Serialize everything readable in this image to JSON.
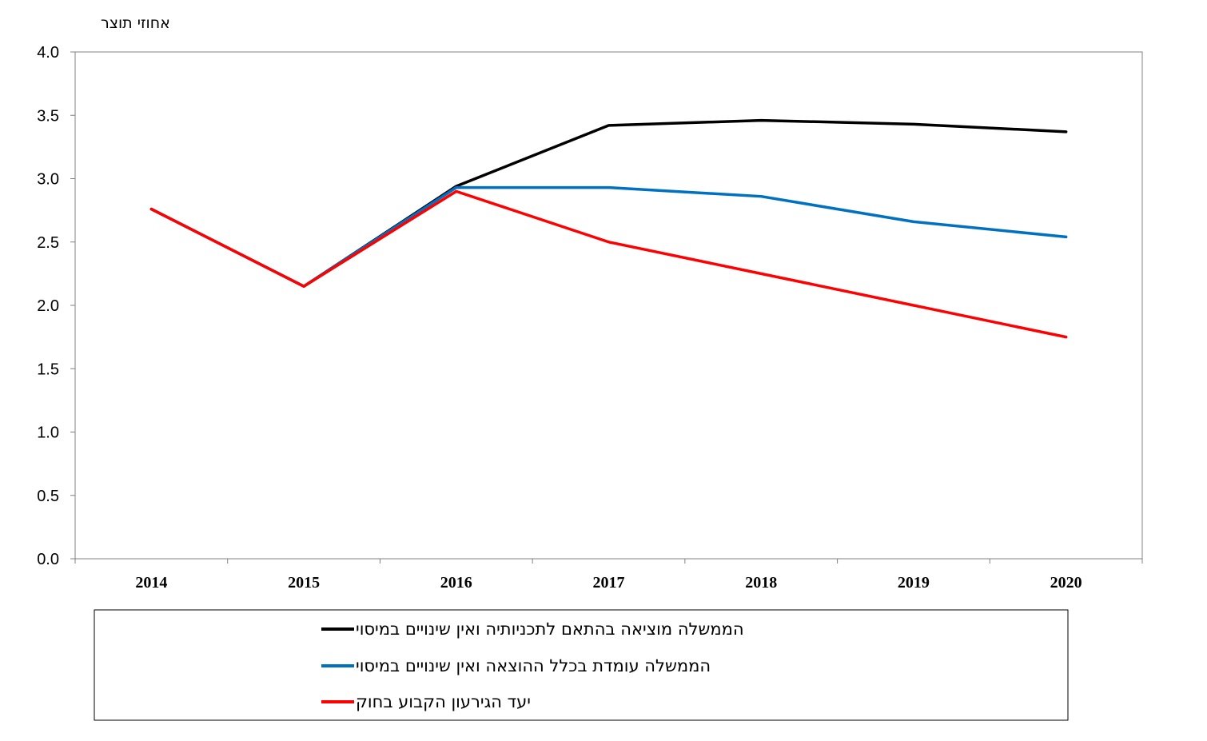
{
  "chart_data": {
    "type": "line",
    "title": "",
    "xlabel": "",
    "ylabel": "אחוזי תוצר",
    "categories": [
      "2014",
      "2015",
      "2016",
      "2017",
      "2018",
      "2019",
      "2020"
    ],
    "ylim": [
      0,
      4
    ],
    "yticks": [
      "0.0",
      "0.5",
      "1.0",
      "1.5",
      "2.0",
      "2.5",
      "3.0",
      "3.5",
      "4.0"
    ],
    "grid": false,
    "legend_position": "bottom",
    "series": [
      {
        "name": "הממשלה מוציאה בהתאם לתכניותיה ואין שינויים במיסוי",
        "color": "#000000",
        "values": [
          2.76,
          2.15,
          2.94,
          3.42,
          3.46,
          3.43,
          3.37
        ]
      },
      {
        "name": "הממשלה עומדת בכלל ההוצאה ואין שינויים במיסוי",
        "color": "#0070C0",
        "values": [
          2.76,
          2.15,
          2.93,
          2.93,
          2.86,
          2.66,
          2.54
        ]
      },
      {
        "name": "יעד הגירעון הקבוע בחוק",
        "color": "#FF0000",
        "values": [
          2.76,
          2.15,
          2.9,
          2.5,
          2.25,
          2.0,
          1.75
        ]
      }
    ]
  }
}
